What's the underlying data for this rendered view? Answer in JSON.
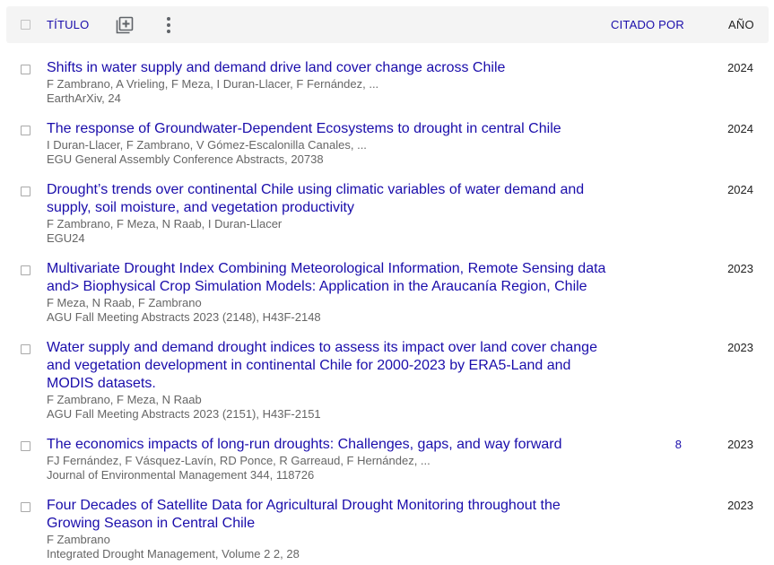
{
  "header": {
    "title_col": "TÍTULO",
    "add_icon": "add-library-icon",
    "more_icon": "more-vert-icon",
    "cited_col": "CITADO POR",
    "year_col": "AÑO"
  },
  "articles": [
    {
      "title": "Shifts in water supply and demand drive land cover change across Chile",
      "authors": "F Zambrano, A Vrieling, F Meza, I Duran-Llacer, F Fernández, ...",
      "venue": "EarthArXiv, 24",
      "cited_by": "",
      "year": "2024"
    },
    {
      "title": "The response of Groundwater-Dependent Ecosystems to drought in central Chile",
      "authors": "I Duran-Llacer, F Zambrano, V Gómez-Escalonilla Canales, ...",
      "venue": "EGU General Assembly Conference Abstracts, 20738",
      "cited_by": "",
      "year": "2024"
    },
    {
      "title": "Drought’s trends over continental Chile using climatic variables of water demand and supply, soil moisture, and vegetation productivity",
      "authors": "F Zambrano, F Meza, N Raab, I Duran-Llacer",
      "venue": "EGU24",
      "cited_by": "",
      "year": "2024"
    },
    {
      "title": "Multivariate Drought Index Combining Meteorological Information, Remote Sensing data and> Biophysical Crop Simulation Models: Application in the Araucanía Region, Chile",
      "authors": "F Meza, N Raab, F Zambrano",
      "venue": "AGU Fall Meeting Abstracts 2023 (2148), H43F-2148",
      "cited_by": "",
      "year": "2023"
    },
    {
      "title": "Water supply and demand drought indices to assess its impact over land cover change and vegetation development in continental Chile for 2000-2023 by ERA5-Land and MODIS datasets.",
      "authors": "F Zambrano, F Meza, N Raab",
      "venue": "AGU Fall Meeting Abstracts 2023 (2151), H43F-2151",
      "cited_by": "",
      "year": "2023"
    },
    {
      "title": "The economics impacts of long-run droughts: Challenges, gaps, and way forward",
      "authors": "FJ Fernández, F Vásquez-Lavín, RD Ponce, R Garreaud, F Hernández, ...",
      "venue": "Journal of Environmental Management 344, 118726",
      "cited_by": "8",
      "year": "2023"
    },
    {
      "title": "Four Decades of Satellite Data for Agricultural Drought Monitoring throughout the Growing Season in Central Chile",
      "authors": "F Zambrano",
      "venue": "Integrated Drought Management, Volume 2 2, 28",
      "cited_by": "",
      "year": "2023"
    }
  ]
}
